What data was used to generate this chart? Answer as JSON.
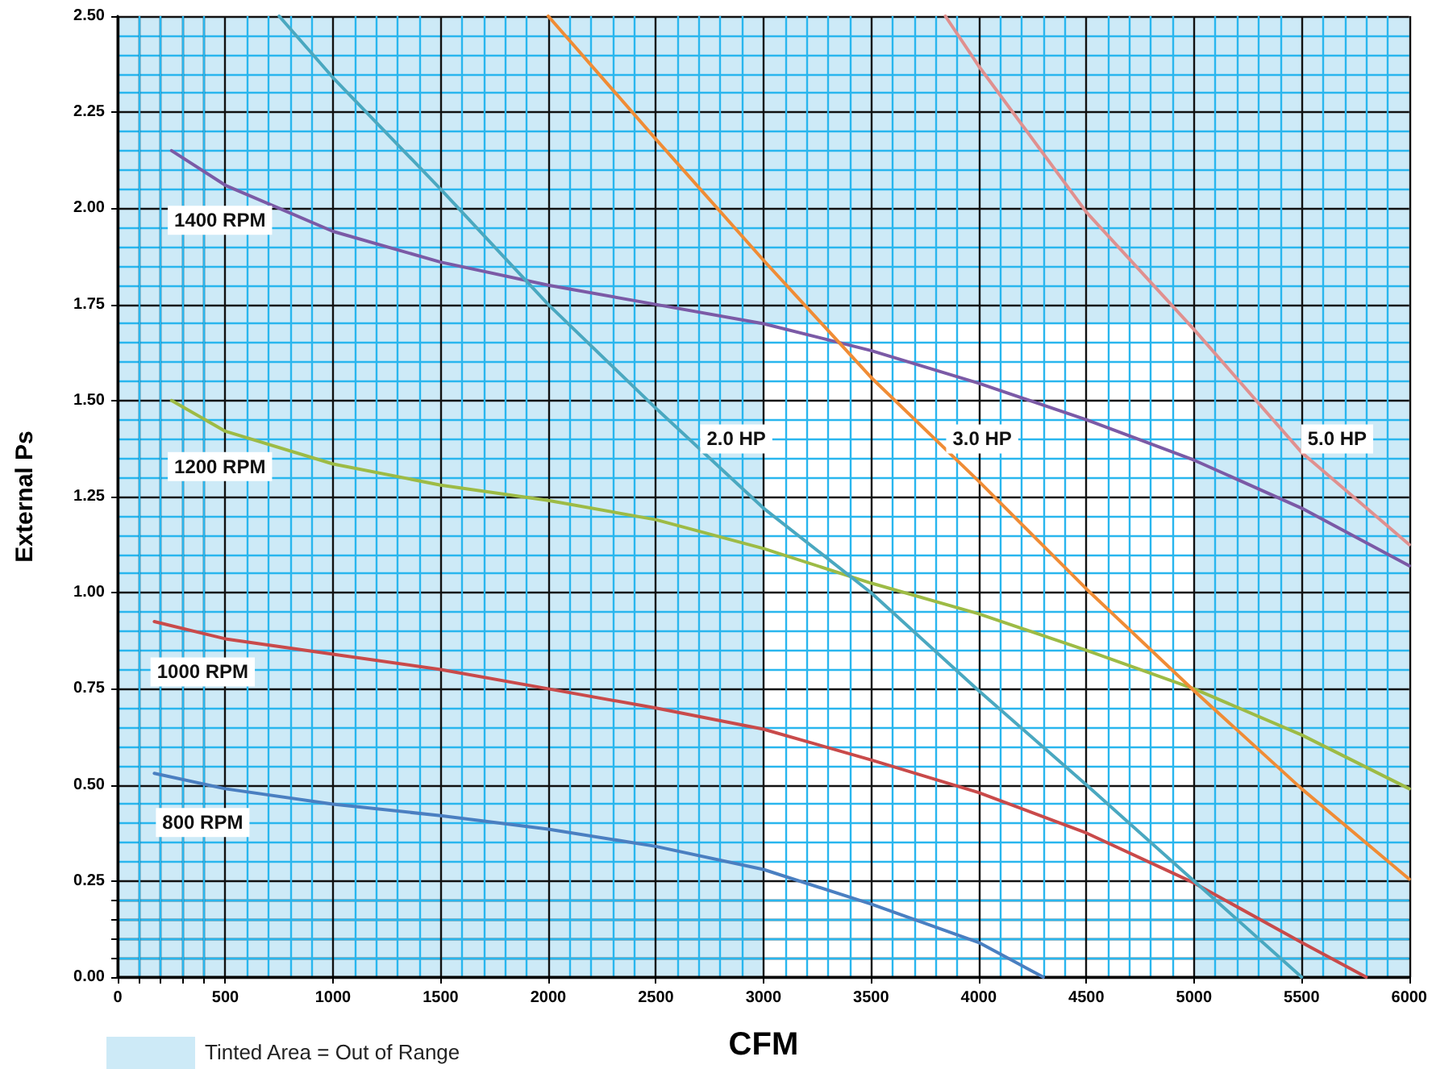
{
  "chart_data": {
    "type": "line",
    "xlabel": "CFM",
    "ylabel": "External Ps",
    "xlim": [
      0,
      6000
    ],
    "xticks": [
      0,
      {
        "value": 100,
        "label": null
      },
      {
        "value": 200,
        "label": null
      },
      {
        "value": 300,
        "label": null
      },
      {
        "value": 400,
        "label": null
      },
      500,
      1000,
      1500,
      2000,
      2500,
      3000,
      3500,
      4000,
      4500,
      5000,
      5500,
      6000
    ],
    "ylim": [
      0,
      2.5
    ],
    "yticks": [
      {
        "value": 0,
        "label": "0.00"
      },
      {
        "value": 0.05,
        "label": null
      },
      {
        "value": 0.1,
        "label": null
      },
      {
        "value": 0.15,
        "label": null
      },
      {
        "value": 0.2,
        "label": null
      },
      {
        "value": 0.25,
        "label": "0.25"
      },
      {
        "value": 0.5,
        "label": "0.50"
      },
      {
        "value": 0.75,
        "label": "0.75"
      },
      {
        "value": 1,
        "label": "1.00"
      },
      {
        "value": 1.25,
        "label": "1.25"
      },
      {
        "value": 1.5,
        "label": "1.50"
      },
      {
        "value": 1.75,
        "label": "1.75"
      },
      {
        "value": 2,
        "label": "2.00"
      },
      {
        "value": 2.25,
        "label": "2.25"
      },
      {
        "value": 2.5,
        "label": "2.50"
      }
    ],
    "grid": true,
    "legend": "bottom left",
    "marker": "none",
    "line_style": "solid",
    "series": [
      {
        "name": "800 RPM",
        "color": "#4a7fc1",
        "x": [
          170,
          500,
          1000,
          1500,
          2000,
          2500,
          3000,
          3500,
          4000,
          4300
        ],
        "values": [
          0.53,
          0.49,
          0.45,
          0.42,
          0.385,
          0.34,
          0.28,
          0.19,
          0.09,
          0
        ]
      },
      {
        "name": "1000 RPM",
        "color": "#c94a4a",
        "x": [
          170,
          500,
          1000,
          1500,
          2000,
          2500,
          3000,
          3500,
          4000,
          4500,
          5000,
          5500,
          5800
        ],
        "values": [
          0.925,
          0.88,
          0.84,
          0.8,
          0.75,
          0.7,
          0.645,
          0.565,
          0.48,
          0.375,
          0.245,
          0.09,
          0
        ]
      },
      {
        "name": "1200 RPM",
        "color": "#9dbb45",
        "x": [
          250,
          500,
          1000,
          1500,
          2000,
          2500,
          3000,
          3500,
          4000,
          4500,
          5000,
          5500,
          6000
        ],
        "values": [
          1.5,
          1.42,
          1.335,
          1.28,
          1.24,
          1.19,
          1.115,
          1.025,
          0.945,
          0.85,
          0.75,
          0.63,
          0.49
        ]
      },
      {
        "name": "1400 RPM",
        "color": "#7b5aa6",
        "x": [
          250,
          500,
          750,
          1000,
          1500,
          2000,
          2500,
          3000,
          3500,
          4000,
          4500,
          5000,
          5500,
          6000
        ],
        "values": [
          2.15,
          2.06,
          2.0,
          1.94,
          1.86,
          1.8,
          1.75,
          1.7,
          1.63,
          1.545,
          1.45,
          1.345,
          1.22,
          1.07
        ]
      },
      {
        "name": "2.0 HP",
        "color": "#4aa8c0",
        "x": [
          750,
          1000,
          1500,
          2000,
          2500,
          3000,
          3500,
          4000,
          4500,
          5000,
          5500
        ],
        "values": [
          2.5,
          2.34,
          2.05,
          1.75,
          1.48,
          1.22,
          1.0,
          0.745,
          0.5,
          0.25,
          0
        ]
      },
      {
        "name": "3.0 HP",
        "color": "#f08c35",
        "x": [
          2000,
          2500,
          3000,
          3500,
          4000,
          4500,
          5000,
          5500,
          6000
        ],
        "values": [
          2.5,
          2.18,
          1.865,
          1.56,
          1.29,
          1.01,
          0.745,
          0.49,
          0.255
        ]
      },
      {
        "name": "5.0 HP",
        "color": "#e0908f",
        "x": [
          3845,
          4000,
          4500,
          5000,
          5500,
          6000
        ],
        "values": [
          2.5,
          2.37,
          1.99,
          1.685,
          1.365,
          1.125
        ]
      }
    ],
    "bands": [
      {
        "axis": "x",
        "from": 0,
        "to": 3000,
        "color": "#cdeaf7",
        "label": "Tinted Area = Out of Range"
      },
      {
        "axis": "x",
        "from": 5000,
        "to": 6000,
        "color": "#cdeaf7"
      },
      {
        "axis": "y",
        "from": 1.7,
        "to": 2.5,
        "color": "#cdeaf7"
      }
    ]
  }
}
